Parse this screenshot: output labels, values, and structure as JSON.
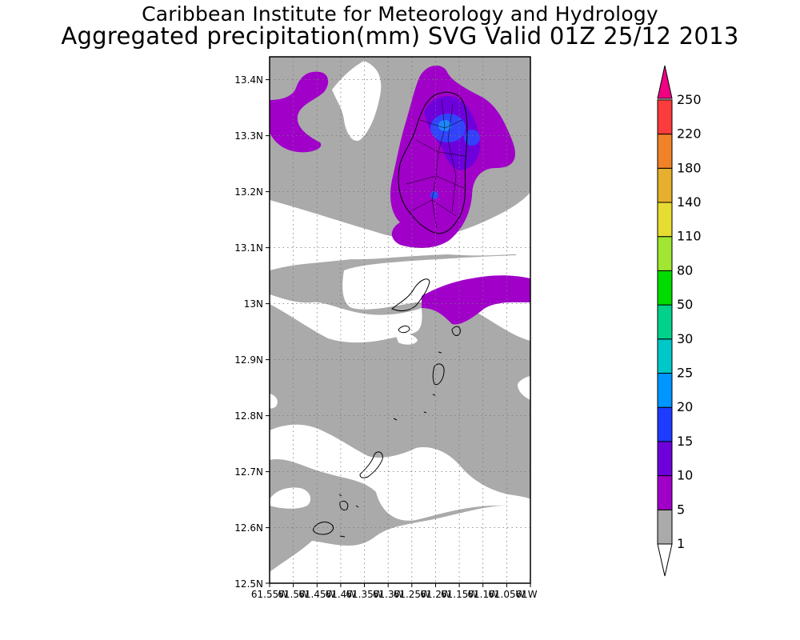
{
  "header": {
    "line1": "Caribbean Institute for Meteorology and Hydrology",
    "line2": "Aggregated precipitation(mm) SVG Valid 01Z 25/12 2013"
  },
  "map": {
    "lat_range": [
      12.5,
      13.45
    ],
    "lon_range": [
      -61.55,
      -61.0
    ],
    "lat_ticks": [
      "13.4N",
      "13.3N",
      "13.2N",
      "13.1N",
      "13N",
      "12.9N",
      "12.8N",
      "12.7N",
      "12.6N",
      "12.5N"
    ],
    "lon_ticks": [
      "61.55W",
      "61.5W",
      "61.45W",
      "61.4W",
      "61.35W",
      "61.3W",
      "61.25W",
      "61.2W",
      "61.15W",
      "61.1W",
      "61.05W",
      "61W"
    ],
    "grid": true,
    "colors": {
      "ocean_low": "#ffffff",
      "rain_1_5": "#aaaaaa",
      "rain_5_10": "#a000c8",
      "rain_10_15": "#6e00dc",
      "rain_15_20": "#1e3cff",
      "coast": "#000000"
    }
  },
  "colorbar": {
    "labels": [
      "1",
      "5",
      "10",
      "15",
      "20",
      "25",
      "30",
      "50",
      "80",
      "110",
      "140",
      "180",
      "220",
      "250"
    ],
    "colors": [
      "#aaaaaa",
      "#a000c8",
      "#6e00dc",
      "#1e3cff",
      "#0096ff",
      "#00c8c8",
      "#00d28c",
      "#00dc00",
      "#a0e632",
      "#e6dc32",
      "#e6af2d",
      "#f08228",
      "#fa3c3c",
      "#f00082"
    ]
  }
}
